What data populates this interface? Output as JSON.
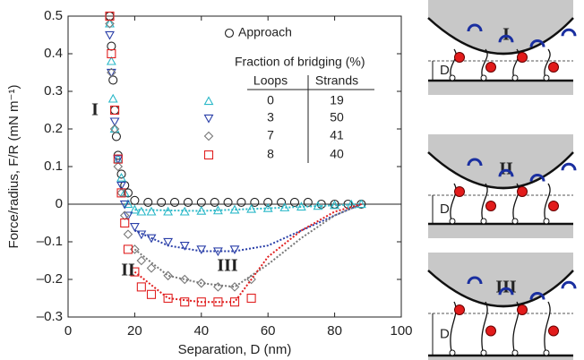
{
  "chart_data": {
    "type": "scatter",
    "ylabel": "Force/radius, F/R (mN m⁻¹)",
    "xlabel": "Separation, D (nm)",
    "xlim": [
      0,
      100
    ],
    "xticks": [
      0,
      20,
      40,
      60,
      80,
      100
    ],
    "ylim": [
      -0.3,
      0.5
    ],
    "yticks": [
      {
        "value": -0.3,
        "label": "–0.3"
      },
      {
        "value": -0.2,
        "label": "–0.2"
      },
      {
        "value": -0.1,
        "label": "–0.1"
      },
      0,
      0.1,
      0.2,
      0.3,
      0.4,
      0.5
    ],
    "annotations": [
      "I",
      "II",
      "III"
    ],
    "legend_title": "Fraction of bridging (%)",
    "legend_columns": [
      "Loops",
      "Strands"
    ],
    "legend_rows": [
      [
        "0",
        "19"
      ],
      [
        "3",
        "50"
      ],
      [
        "7",
        "41"
      ],
      [
        "8",
        "40"
      ]
    ],
    "series": [
      {
        "name": "Approach",
        "color": "#222222",
        "marker": "circle",
        "x": [
          12.5,
          13,
          13.5,
          14,
          14.5,
          15,
          16,
          17,
          18,
          20,
          24,
          28,
          32,
          36,
          40,
          44,
          48,
          52,
          56,
          60,
          64,
          68,
          72,
          76,
          80,
          84,
          88
        ],
        "y": [
          0.5,
          0.42,
          0.33,
          0.25,
          0.18,
          0.13,
          0.08,
          0.05,
          0.03,
          0.01,
          0.005,
          0.005,
          0.005,
          0.005,
          0.005,
          0.005,
          0.005,
          0.005,
          0.005,
          0.005,
          0.005,
          0.005,
          0.005,
          0,
          0,
          0,
          0
        ]
      },
      {
        "color": "#2ab8c8",
        "marker": "triangle",
        "x": [
          12.5,
          13,
          13.5,
          14,
          15,
          16,
          17,
          18,
          20,
          22,
          25,
          30,
          35,
          40,
          45,
          50,
          55,
          60,
          65,
          70,
          75,
          80,
          85,
          88
        ],
        "y": [
          0.48,
          0.38,
          0.28,
          0.2,
          0.12,
          0.07,
          0.03,
          0,
          -0.015,
          -0.02,
          -0.02,
          -0.02,
          -0.02,
          -0.018,
          -0.017,
          -0.015,
          -0.013,
          -0.011,
          -0.009,
          -0.007,
          -0.005,
          -0.003,
          -0.001,
          0
        ],
        "fit_x": [
          20,
          40,
          60,
          80,
          88
        ],
        "fit_y": [
          -0.015,
          -0.018,
          -0.011,
          -0.003,
          0
        ]
      },
      {
        "color": "#2a3fa8",
        "marker": "down-triangle",
        "x": [
          12.5,
          13,
          14,
          15,
          16,
          17,
          18,
          20,
          22,
          25,
          30,
          35,
          40,
          45,
          50
        ],
        "y": [
          0.45,
          0.35,
          0.22,
          0.12,
          0.05,
          0,
          -0.03,
          -0.06,
          -0.08,
          -0.09,
          -0.1,
          -0.11,
          -0.12,
          -0.125,
          -0.12
        ],
        "fit_x": [
          20,
          30,
          40,
          50,
          60,
          70,
          80,
          88
        ],
        "fit_y": [
          -0.07,
          -0.11,
          -0.125,
          -0.125,
          -0.11,
          -0.07,
          -0.03,
          0
        ]
      },
      {
        "color": "#777777",
        "marker": "diamond",
        "x": [
          12.5,
          13,
          14,
          15,
          16,
          17,
          18,
          20,
          22,
          25,
          30,
          35,
          40,
          45,
          50,
          55
        ],
        "y": [
          0.48,
          0.35,
          0.2,
          0.1,
          0.03,
          -0.03,
          -0.08,
          -0.12,
          -0.15,
          -0.17,
          -0.19,
          -0.2,
          -0.21,
          -0.22,
          -0.22,
          -0.2
        ],
        "fit_x": [
          20,
          30,
          40,
          50,
          60,
          70,
          80,
          88
        ],
        "fit_y": [
          -0.12,
          -0.19,
          -0.21,
          -0.22,
          -0.16,
          -0.09,
          -0.03,
          0
        ]
      },
      {
        "color": "#e02020",
        "marker": "square",
        "x": [
          12.5,
          13,
          14,
          15,
          16,
          17,
          18,
          20,
          22,
          25,
          30,
          35,
          40,
          45,
          50,
          55
        ],
        "y": [
          0.5,
          0.4,
          0.25,
          0.12,
          0.03,
          -0.05,
          -0.12,
          -0.18,
          -0.22,
          -0.24,
          -0.25,
          -0.26,
          -0.26,
          -0.26,
          -0.26,
          -0.25
        ],
        "fit_x": [
          20,
          30,
          40,
          50,
          55,
          60,
          70,
          80,
          88
        ],
        "fit_y": [
          -0.18,
          -0.25,
          -0.26,
          -0.26,
          -0.2,
          -0.14,
          -0.07,
          -0.02,
          0
        ]
      }
    ]
  },
  "panels": [
    {
      "label": "I",
      "distance": "D"
    },
    {
      "label": "II",
      "distance": "D"
    },
    {
      "label": "III",
      "distance": "D"
    }
  ]
}
